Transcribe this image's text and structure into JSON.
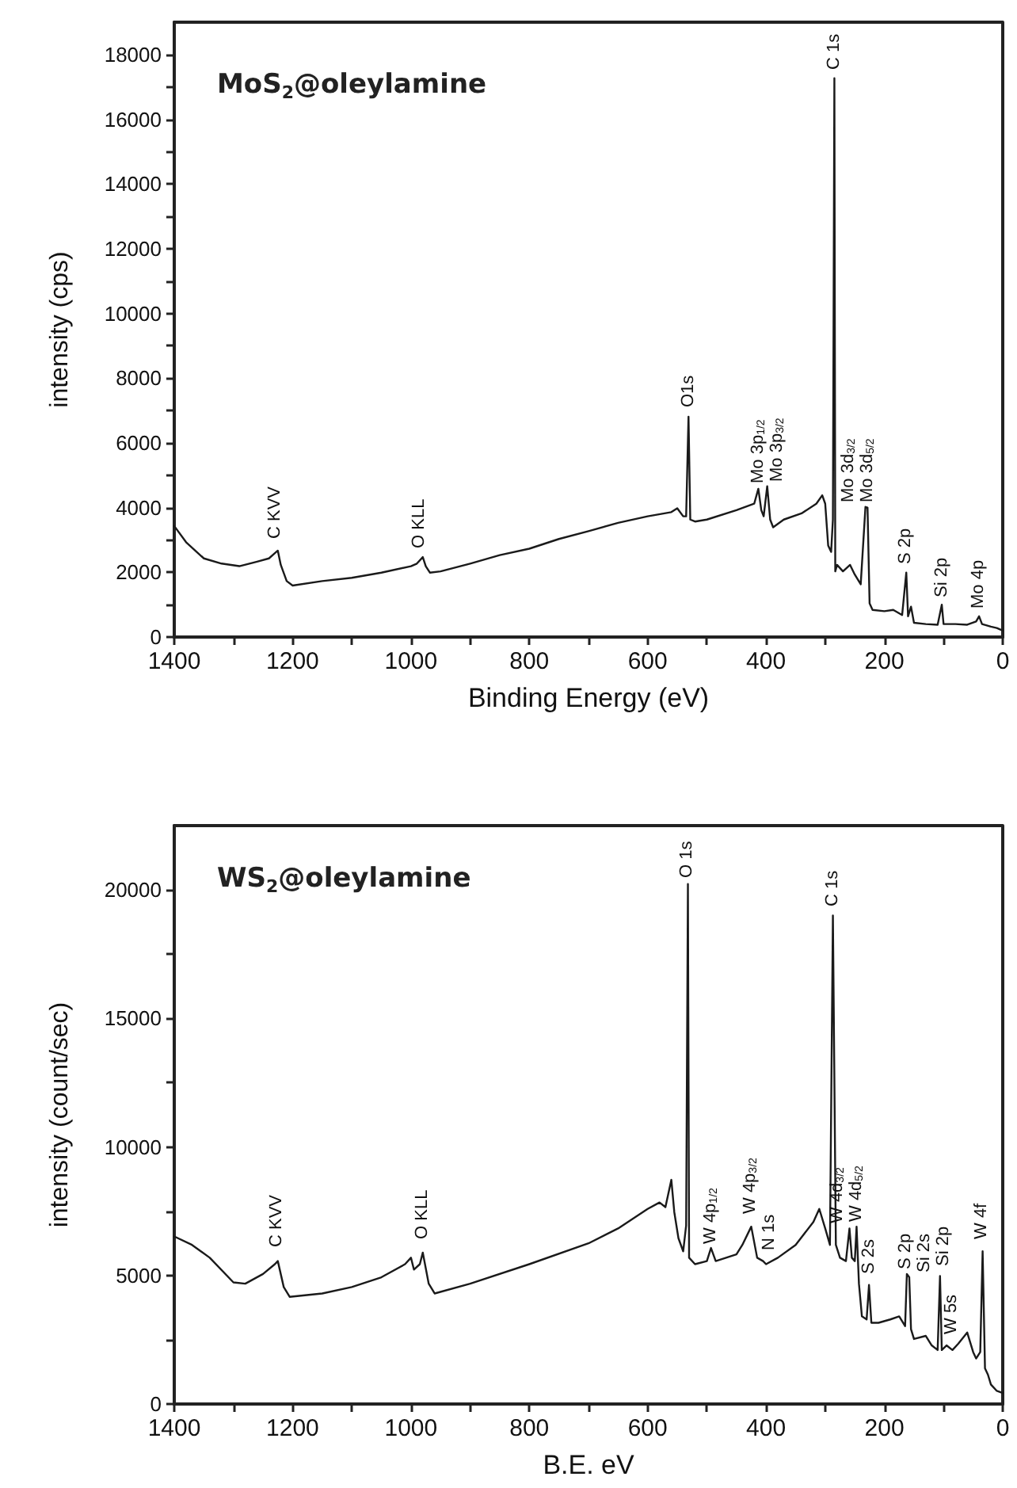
{
  "chart_data": [
    {
      "type": "line",
      "title": "MoS$_{2}$@oleylamine",
      "xlabel": "Binding Energy (eV)",
      "ylabel": "intensity (cps)",
      "xlim": [
        1400,
        0
      ],
      "xticks": [
        1400,
        {
          "value": 1300,
          "label": null
        },
        1200,
        {
          "value": 1100,
          "label": null
        },
        1000,
        {
          "value": 900,
          "label": null
        },
        800,
        {
          "value": 700,
          "label": null
        },
        600,
        {
          "value": 500,
          "label": null
        },
        400,
        {
          "value": 300,
          "label": null
        },
        200,
        {
          "value": 100,
          "label": null
        },
        0
      ],
      "ylim": [
        0,
        19000
      ],
      "yticks": [
        0,
        {
          "value": 1000,
          "label": null
        },
        2000,
        {
          "value": 3000,
          "label": null
        },
        4000,
        {
          "value": 5000,
          "label": null
        },
        6000,
        {
          "value": 7000,
          "label": null
        },
        8000,
        {
          "value": 9000,
          "label": null
        },
        10000,
        {
          "value": 11000,
          "label": null
        },
        12000,
        {
          "value": 13000,
          "label": null
        },
        14000,
        {
          "value": 15000,
          "label": null
        },
        16000,
        {
          "value": 17000,
          "label": null
        },
        18000
      ],
      "grid": false,
      "marker": "none",
      "line_style": "solid",
      "series": [
        {
          "color": "#1a1a1a",
          "x": [
            1400,
            1380,
            1350,
            1320,
            1290,
            1260,
            1240,
            1230,
            1225,
            1220,
            1210,
            1200,
            1150,
            1100,
            1050,
            1000,
            990,
            980,
            975,
            968,
            950,
            900,
            850,
            800,
            750,
            700,
            650,
            600,
            560,
            550,
            540,
            535,
            531,
            528,
            520,
            500,
            450,
            420,
            413,
            408,
            404,
            398,
            393,
            388,
            370,
            340,
            315,
            305,
            300,
            295,
            290,
            287,
            284.5,
            283,
            280,
            270,
            258,
            250,
            240,
            232,
            228.5,
            225,
            220,
            200,
            185,
            170,
            163,
            160,
            155,
            150,
            130,
            110,
            103,
            100,
            80,
            60,
            45,
            40,
            35,
            20,
            10,
            0
          ],
          "values": [
            3430,
            2930,
            2430,
            2270,
            2190,
            2330,
            2430,
            2590,
            2670,
            2230,
            1730,
            1590,
            1730,
            1830,
            1990,
            2190,
            2270,
            2470,
            2190,
            1990,
            2030,
            2270,
            2530,
            2730,
            3030,
            3270,
            3530,
            3730,
            3860,
            3980,
            3730,
            3730,
            6810,
            3630,
            3570,
            3630,
            3920,
            4120,
            4580,
            3920,
            3730,
            4660,
            3630,
            3390,
            3630,
            3820,
            4120,
            4380,
            4120,
            2830,
            2630,
            3630,
            17270,
            2030,
            2230,
            2030,
            2230,
            1930,
            1630,
            4020,
            4000,
            1040,
            840,
            800,
            840,
            680,
            1990,
            640,
            940,
            440,
            400,
            380,
            1000,
            400,
            400,
            380,
            480,
            640,
            400,
            320,
            280,
            200
          ]
        }
      ],
      "annotations": [
        {
          "text": "C KVV",
          "x": 1230,
          "y": 2900
        },
        {
          "text": "O KLL",
          "x": 985,
          "y": 2600
        },
        {
          "text": "O1s",
          "x": 531,
          "y": 6950
        },
        {
          "text": "Mo 3p$_{1/2}$",
          "x": 413,
          "y": 4580
        },
        {
          "text": "Mo 3p$_{3/2}$",
          "x": 398,
          "y": 4660
        },
        {
          "text": "C 1s",
          "x": 284.5,
          "y": 17400
        },
        {
          "text": "Mo 3d$_{5/2}$",
          "x": 228.5,
          "y": 4000
        },
        {
          "text": "Mo 3d$_{3/2}$",
          "x": 232,
          "y": 4020
        },
        {
          "text": "S 2p",
          "x": 163,
          "y": 2100
        },
        {
          "text": "Si 2p",
          "x": 103,
          "y": 1100
        },
        {
          "text": "Mo 4p",
          "x": 40,
          "y": 750
        }
      ]
    },
    {
      "type": "line",
      "title": "WS$_{2}$@oleylamine",
      "xlabel": "B.E. eV",
      "ylabel": "intensity (count/sec)",
      "xlim": [
        1400,
        0
      ],
      "xticks": [
        1400,
        {
          "value": 1300,
          "label": null
        },
        1200,
        {
          "value": 1100,
          "label": null
        },
        1000,
        {
          "value": 900,
          "label": null
        },
        800,
        {
          "value": 700,
          "label": null
        },
        600,
        {
          "value": 500,
          "label": null
        },
        400,
        {
          "value": 300,
          "label": null
        },
        200,
        {
          "value": 100,
          "label": null
        },
        0
      ],
      "ylim": [
        0,
        22500
      ],
      "yticks": [
        0,
        {
          "value": 2500,
          "label": null
        },
        5000,
        {
          "value": 7500,
          "label": null
        },
        10000,
        {
          "value": 12500,
          "label": null
        },
        15000,
        {
          "value": 17500,
          "label": null
        },
        20000
      ],
      "grid": false,
      "marker": "none",
      "line_style": "solid",
      "series": [
        {
          "color": "#1a1a1a",
          "x": [
            1400,
            1370,
            1340,
            1300,
            1280,
            1250,
            1230,
            1225,
            1215,
            1205,
            1150,
            1100,
            1050,
            1010,
            1000,
            995,
            985,
            980,
            970,
            960,
            900,
            800,
            700,
            650,
            600,
            580,
            570,
            560,
            555,
            548,
            540,
            535,
            532,
            530,
            520,
            500,
            493,
            485,
            450,
            440,
            425,
            415,
            405,
            400,
            380,
            350,
            320,
            310,
            300,
            292,
            287,
            282,
            275,
            265,
            259,
            255,
            250,
            247,
            243,
            238,
            230,
            226,
            222,
            210,
            190,
            175,
            165,
            162,
            158,
            155,
            150,
            130,
            120,
            110,
            106,
            103,
            95,
            85,
            75,
            60,
            50,
            45,
            38,
            34,
            30,
            25,
            20,
            10,
            0
          ],
          "values": [
            6520,
            6190,
            5690,
            4730,
            4680,
            5060,
            5440,
            5560,
            4550,
            4170,
            4300,
            4550,
            4930,
            5440,
            5690,
            5230,
            5440,
            5890,
            4680,
            4300,
            4680,
            5440,
            6250,
            6830,
            7590,
            7840,
            7660,
            8720,
            7460,
            6450,
            5940,
            6950,
            20230,
            5690,
            5440,
            5560,
            6070,
            5560,
            5820,
            6190,
            6900,
            5690,
            5560,
            5440,
            5690,
            6190,
            7080,
            7590,
            6830,
            6190,
            19000,
            6190,
            5690,
            5560,
            6830,
            5690,
            5560,
            6900,
            4680,
            3410,
            3290,
            4630,
            3160,
            3160,
            3290,
            3410,
            3030,
            5060,
            4930,
            2910,
            2530,
            2650,
            2280,
            2100,
            4980,
            2100,
            2280,
            2100,
            2350,
            2780,
            2020,
            1770,
            2020,
            5940,
            1390,
            1140,
            760,
            510,
            430
          ]
        }
      ],
      "annotations": [
        {
          "text": "C KVV",
          "x": 1225,
          "y": 5900
        },
        {
          "text": "O KLL",
          "x": 980,
          "y": 6200
        },
        {
          "text": "O 1s",
          "x": 532,
          "y": 20300
        },
        {
          "text": "W 4p$_{1/2}$",
          "x": 493,
          "y": 6070
        },
        {
          "text": "W 4p$_{3/2}$",
          "x": 425,
          "y": 7200
        },
        {
          "text": "N 1s",
          "x": 400,
          "y": 5800
        },
        {
          "text": "C 1s",
          "x": 287,
          "y": 19200
        },
        {
          "text": "W 4d$_{5/2}$",
          "x": 247,
          "y": 6900
        },
        {
          "text": "W 4d$_{3/2}$",
          "x": 259,
          "y": 6830
        },
        {
          "text": "S 2s",
          "x": 224,
          "y": 4900
        },
        {
          "text": "S 2p",
          "x": 162,
          "y": 5060
        },
        {
          "text": "Si 2s",
          "x": 158,
          "y": 4930
        },
        {
          "text": "Si 2p",
          "x": 106,
          "y": 5200
        },
        {
          "text": "W 5s",
          "x": 85,
          "y": 2500
        },
        {
          "text": "W 4f",
          "x": 34,
          "y": 6200
        }
      ]
    }
  ]
}
